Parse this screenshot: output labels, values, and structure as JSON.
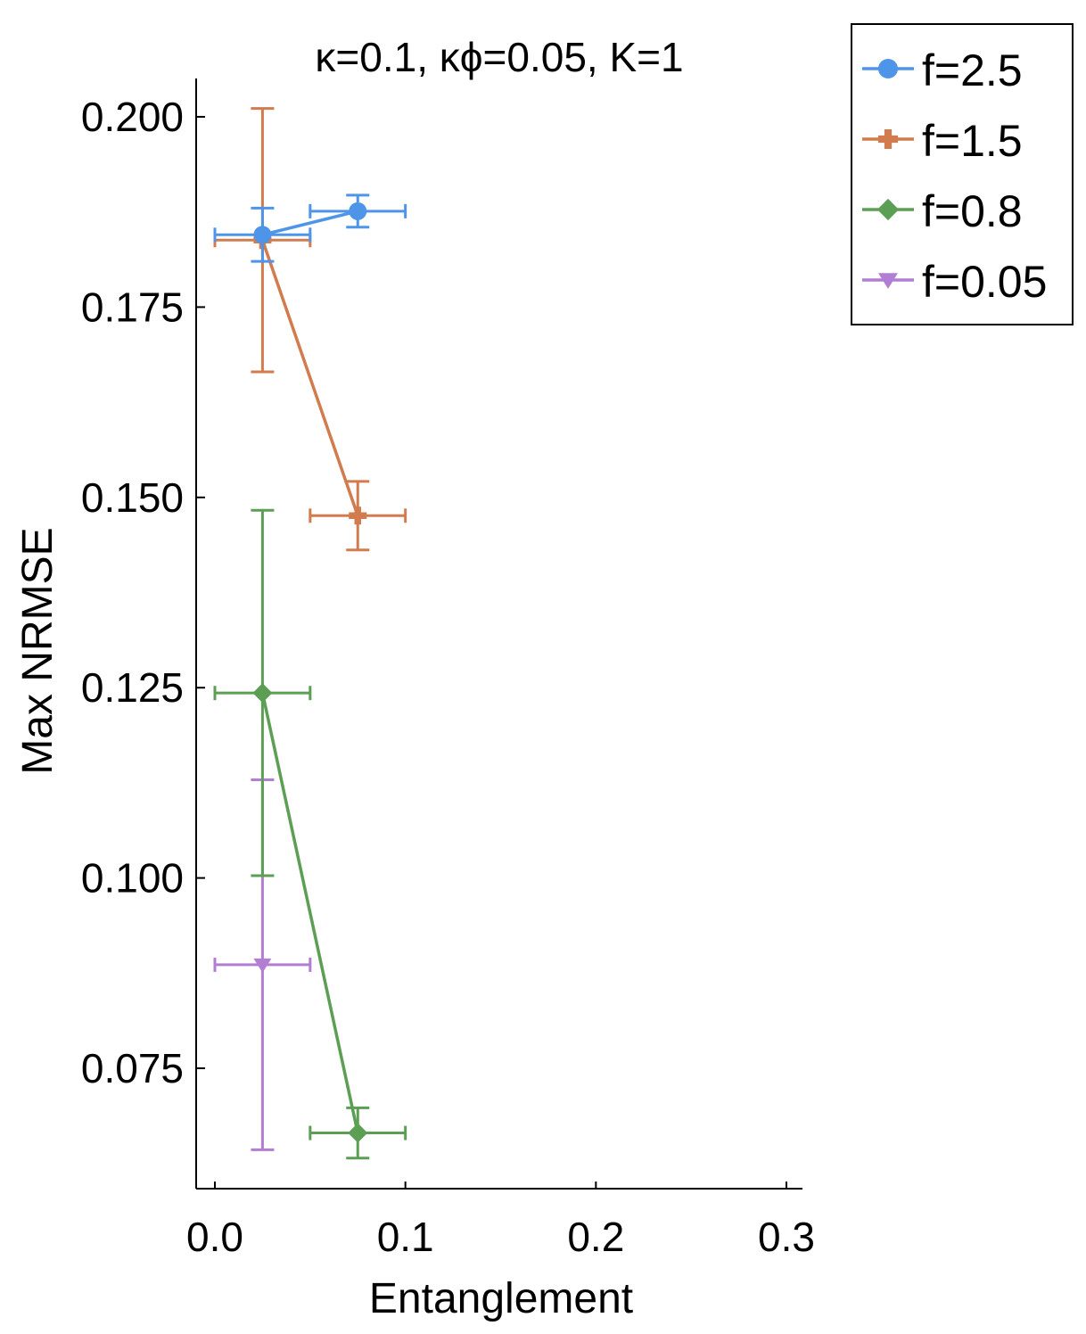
{
  "chart_data": {
    "type": "scatter",
    "title": "κ=0.1, κϕ=0.05, K=1",
    "xlabel": "Entanglement",
    "ylabel": "Max NRMSE",
    "xlim": [
      -0.01,
      0.31
    ],
    "ylim": [
      0.059,
      0.205
    ],
    "x_ticks": [
      0.0,
      0.1,
      0.2,
      0.3
    ],
    "x_tick_labels": [
      "0.0",
      "0.1",
      "0.2",
      "0.3"
    ],
    "y_ticks": [
      0.075,
      0.1,
      0.125,
      0.15,
      0.175,
      0.2
    ],
    "y_tick_labels": [
      "0.075",
      "0.100",
      "0.125",
      "0.150",
      "0.175",
      "0.200"
    ],
    "grid": false,
    "legend_position": "outside-top-right",
    "series": [
      {
        "name": "f=2.5",
        "color": "#4e95e9",
        "marker": "circle",
        "x": [
          0.025,
          0.075
        ],
        "y": [
          0.1845,
          0.1876
        ],
        "x_err": [
          0.025,
          0.025
        ],
        "y_err": [
          0.0035,
          0.0021
        ]
      },
      {
        "name": "f=1.5",
        "color": "#d27b4e",
        "marker": "cross",
        "x": [
          0.025,
          0.075
        ],
        "y": [
          0.1838,
          0.1476
        ],
        "x_err": [
          0.025,
          0.025
        ],
        "y_err": [
          0.0173,
          0.0045
        ]
      },
      {
        "name": "f=0.8",
        "color": "#5c9f54",
        "marker": "diamond",
        "x": [
          0.025,
          0.075
        ],
        "y": [
          0.1243,
          0.0665
        ],
        "x_err": [
          0.025,
          0.025
        ],
        "y_err": [
          0.024,
          0.0033
        ]
      },
      {
        "name": "f=0.05",
        "color": "#b27ed4",
        "marker": "triangle-down",
        "x": [
          0.025
        ],
        "y": [
          0.0886
        ],
        "x_err": [
          0.025
        ],
        "y_err": [
          0.0243
        ]
      }
    ]
  }
}
